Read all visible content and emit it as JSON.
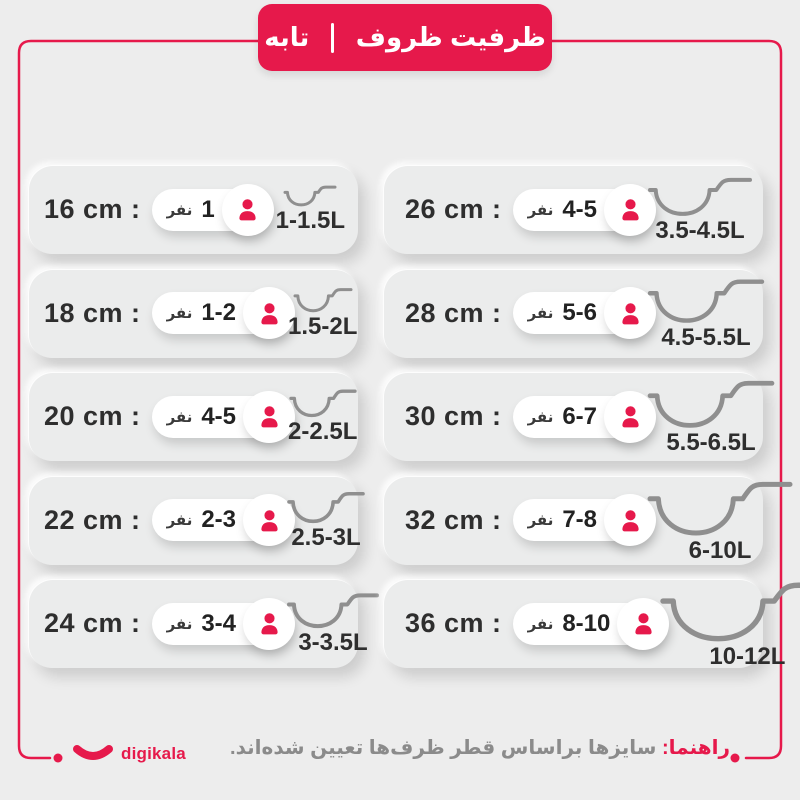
{
  "colors": {
    "accent": "#e6194b",
    "pan": "#8f8f8f",
    "text": "#2e2e2e",
    "muted": "#8b8b8b",
    "bg": "#ededed"
  },
  "header": {
    "title": "ظرفیت ظروف",
    "subtitle": "تابه"
  },
  "rows": {
    "left": [
      {
        "size": "16 cm :",
        "persons": "1",
        "unit": "نفر",
        "capacity": "1-1.5L",
        "pan": {
          "w": 52,
          "h": 22,
          "sw": 3
        }
      },
      {
        "size": "18 cm :",
        "persons": "1-2",
        "unit": "نفر",
        "capacity": "1.5-2L",
        "pan": {
          "w": 58,
          "h": 26,
          "sw": 3
        }
      },
      {
        "size": "20 cm :",
        "persons": "4-5",
        "unit": "نفر",
        "capacity": "2-2.5L",
        "pan": {
          "w": 66,
          "h": 30,
          "sw": 3.3
        }
      },
      {
        "size": "22 cm :",
        "persons": "2-3",
        "unit": "نفر",
        "capacity": "2.5-3L",
        "pan": {
          "w": 76,
          "h": 34,
          "sw": 3.6
        }
      },
      {
        "size": "24 cm :",
        "persons": "3-4",
        "unit": "نفر",
        "capacity": "3-3.5L",
        "pan": {
          "w": 90,
          "h": 38,
          "sw": 4
        }
      }
    ],
    "right": [
      {
        "size": "26 cm :",
        "persons": "4-5",
        "unit": "نفر",
        "capacity": "3.5-4.5L",
        "pan": {
          "w": 102,
          "h": 42,
          "sw": 4
        }
      },
      {
        "size": "28 cm :",
        "persons": "5-6",
        "unit": "نفر",
        "capacity": "4.5-5.5L",
        "pan": {
          "w": 114,
          "h": 48,
          "sw": 4.4
        }
      },
      {
        "size": "30 cm :",
        "persons": "6-7",
        "unit": "نفر",
        "capacity": "5.5-6.5L",
        "pan": {
          "w": 124,
          "h": 52,
          "sw": 4.7
        }
      },
      {
        "size": "32 cm :",
        "persons": "7-8",
        "unit": "نفر",
        "capacity": "6-10L",
        "pan": {
          "w": 142,
          "h": 60,
          "sw": 5
        }
      },
      {
        "size": "36 cm :",
        "persons": "8-10",
        "unit": "نفر",
        "capacity": "10-12L",
        "pan": {
          "w": 170,
          "h": 66,
          "sw": 5.4
        }
      }
    ]
  },
  "footer": {
    "brand": "digikala",
    "note_label": "راهنما:",
    "note_text": "سایزها براساس قطر ظرف‌ها تعیین شده‌اند."
  }
}
